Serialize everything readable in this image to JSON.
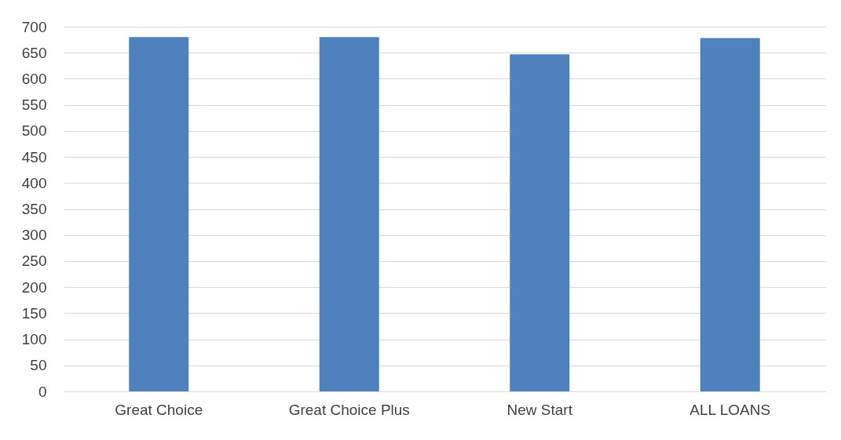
{
  "chart_data": {
    "type": "bar",
    "categories": [
      "Great Choice",
      "Great Choice Plus",
      "New Start",
      "ALL LOANS"
    ],
    "values": [
      680,
      680,
      647,
      678
    ],
    "color": "#4f81bd",
    "ylim": [
      0,
      700
    ],
    "yticks": [
      0,
      50,
      100,
      150,
      200,
      250,
      300,
      350,
      400,
      450,
      500,
      550,
      600,
      650,
      700
    ],
    "grid": "y"
  }
}
